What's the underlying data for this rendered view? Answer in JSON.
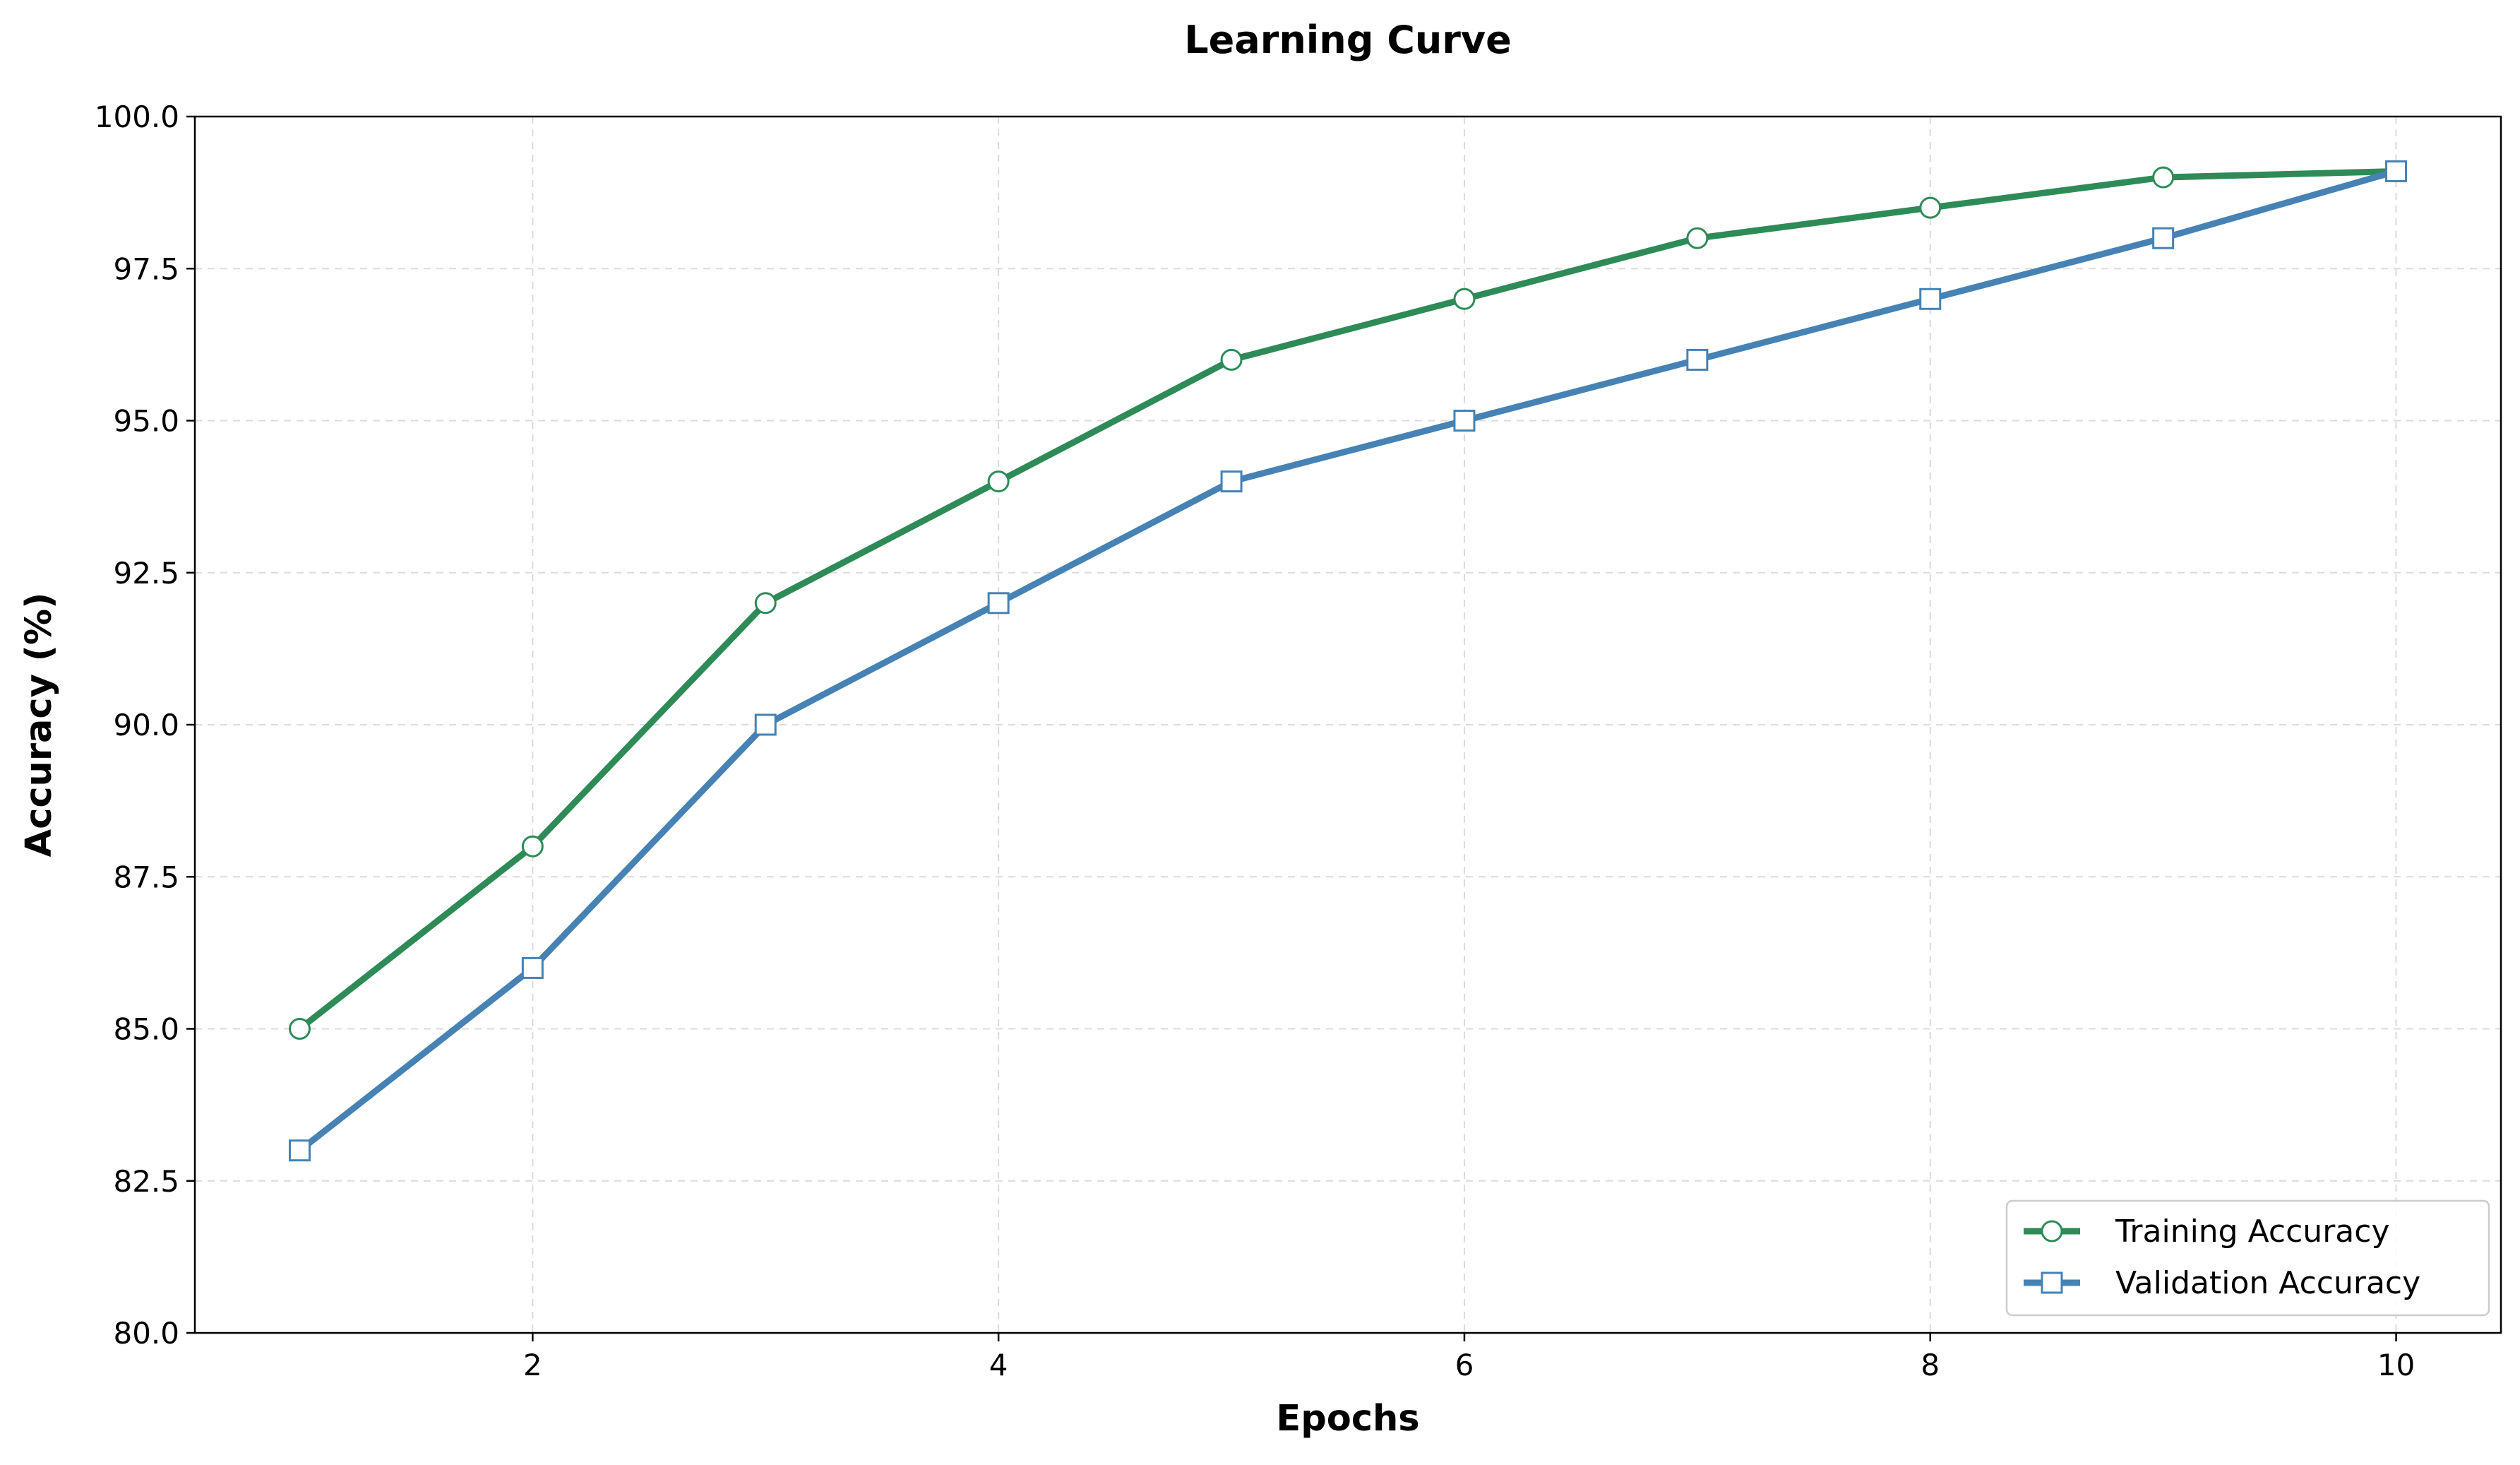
{
  "chart_data": {
    "type": "line",
    "title": "Learning Curve",
    "xlabel": "Epochs",
    "ylabel": "Accuracy (%)",
    "xlim": [
      0.55,
      10.45
    ],
    "ylim": [
      80.0,
      100.0
    ],
    "xticks": [
      2,
      4,
      6,
      8,
      10
    ],
    "xtick_labels": [
      "2",
      "4",
      "6",
      "8",
      "10"
    ],
    "yticks": [
      80.0,
      82.5,
      85.0,
      87.5,
      90.0,
      92.5,
      95.0,
      97.5,
      100.0
    ],
    "ytick_labels": [
      "80.0",
      "82.5",
      "85.0",
      "87.5",
      "90.0",
      "92.5",
      "95.0",
      "97.5",
      "100.0"
    ],
    "grid": true,
    "legend_position": "bottom-right",
    "x": [
      1,
      2,
      3,
      4,
      5,
      6,
      7,
      8,
      9,
      10
    ],
    "series": [
      {
        "name": "Training Accuracy",
        "color": "#2e8b57",
        "marker": "circle",
        "values": [
          85.0,
          88.0,
          92.0,
          94.0,
          96.0,
          97.0,
          98.0,
          98.5,
          99.0,
          99.1
        ]
      },
      {
        "name": "Validation Accuracy",
        "color": "#4682b4",
        "marker": "square",
        "values": [
          83.0,
          86.0,
          90.0,
          92.0,
          94.0,
          95.0,
          96.0,
          97.0,
          98.0,
          99.1
        ]
      }
    ]
  }
}
